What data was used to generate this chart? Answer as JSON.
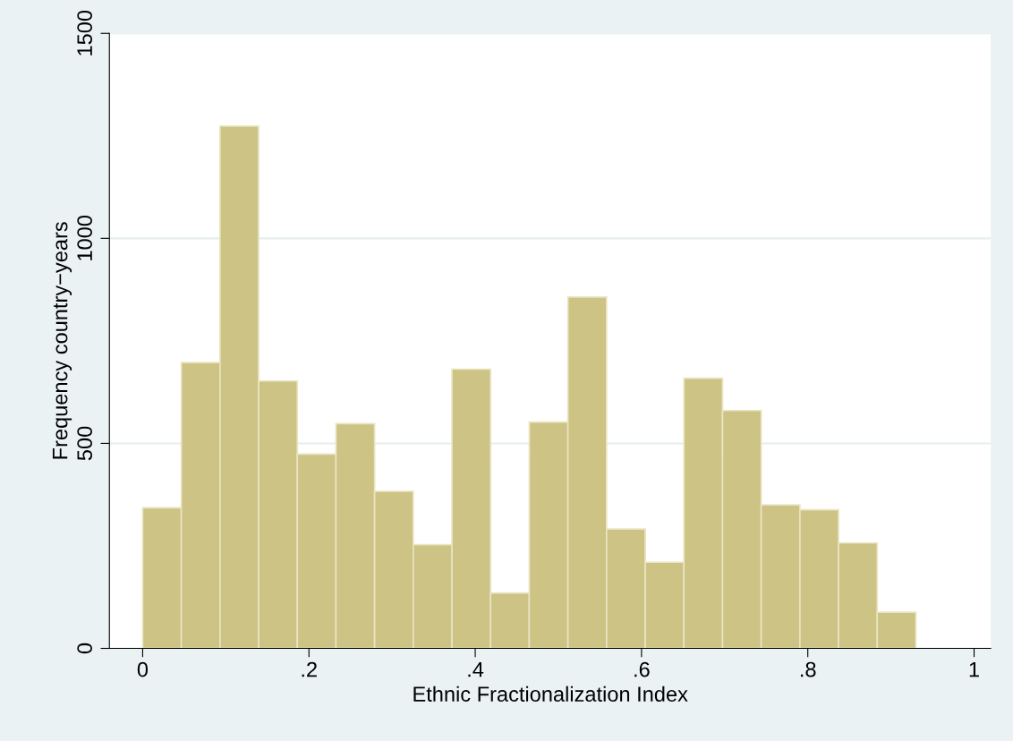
{
  "chart_data": {
    "type": "histogram",
    "xlabel": "Ethnic Fractionalization Index",
    "ylabel": "Frequency country−years",
    "bins": [
      0,
      0.0465,
      0.093,
      0.1395,
      0.186,
      0.2325,
      0.279,
      0.3255,
      0.372,
      0.4185,
      0.465,
      0.5115,
      0.558,
      0.6045,
      0.651,
      0.6975,
      0.744,
      0.7905,
      0.837,
      0.8835,
      0.93
    ],
    "values": [
      343,
      697,
      1274,
      652,
      474,
      548,
      383,
      253,
      681,
      135,
      552,
      857,
      291,
      210,
      659,
      580,
      350,
      338,
      257,
      88
    ],
    "color": "#cdc384",
    "xlim": [
      -0.04,
      1.02
    ],
    "ylim": [
      0,
      1500
    ],
    "xticks": [
      0,
      {
        "value": 0.2,
        "label": ".2"
      },
      {
        "value": 0.4,
        "label": ".4"
      },
      {
        "value": 0.6,
        "label": ".6"
      },
      {
        "value": 0.8,
        "label": ".8"
      },
      1
    ],
    "yticks": [
      0,
      500,
      1000,
      1500
    ],
    "grid": "y"
  }
}
